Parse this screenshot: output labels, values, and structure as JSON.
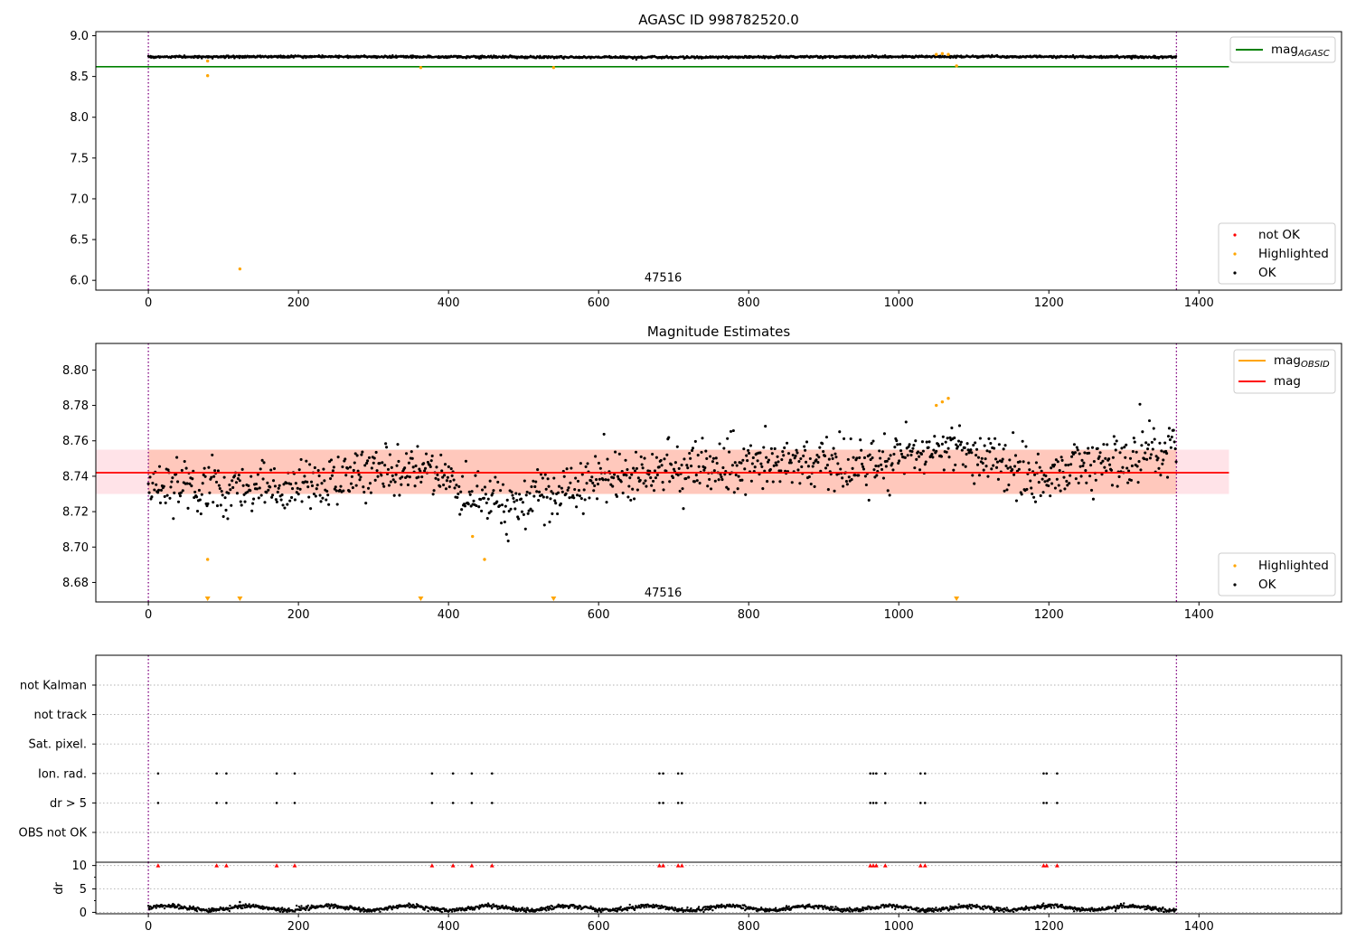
{
  "chart_data": [
    {
      "type": "scatter",
      "title": "AGASC ID 998782520.0",
      "xlim": [
        -70,
        1590
      ],
      "ylim": [
        5.88,
        9.05
      ],
      "x_ticks": [
        0,
        200,
        400,
        600,
        800,
        1000,
        1200,
        1400
      ],
      "y_ticks": [
        6.0,
        6.5,
        7.0,
        7.5,
        8.0,
        8.5,
        9.0
      ],
      "annotation": {
        "text": "47516",
        "x": 686,
        "y": 6.03
      },
      "obs_boundaries": [
        0,
        1370
      ],
      "mag_agasc": {
        "name": "mag",
        "subscript": "AGASC",
        "value": 8.62,
        "x_range": [
          -70,
          1440
        ],
        "color": "#008000"
      },
      "ok_series": {
        "name": "OK",
        "x_range": [
          0,
          1370
        ],
        "y_mean": 8.74,
        "y_spread": 0.012,
        "color": "#000000"
      },
      "highlighted": {
        "name": "Highlighted",
        "color": "#FFA500",
        "points": [
          [
            79,
            8.51
          ],
          [
            79,
            8.69
          ],
          [
            122,
            6.14
          ],
          [
            363,
            8.61
          ],
          [
            540,
            8.61
          ],
          [
            1050,
            8.77
          ],
          [
            1058,
            8.78
          ],
          [
            1066,
            8.77
          ],
          [
            1077,
            8.63
          ]
        ]
      },
      "not_ok": {
        "name": "not OK",
        "color": "#FF0000",
        "points": []
      },
      "legend_lines": "top-right",
      "legend_points": "bottom-right"
    },
    {
      "type": "scatter",
      "title": "Magnitude Estimates",
      "xlim": [
        -70,
        1590
      ],
      "ylim": [
        8.669,
        8.815
      ],
      "x_ticks": [
        0,
        200,
        400,
        600,
        800,
        1000,
        1200,
        1400
      ],
      "y_ticks": [
        8.68,
        8.7,
        8.72,
        8.74,
        8.76,
        8.78,
        8.8
      ],
      "y_tick_labels": [
        "8.68",
        "8.70",
        "8.72",
        "8.74",
        "8.76",
        "8.78",
        "8.80"
      ],
      "annotation": {
        "text": "47516",
        "x": 686,
        "y": 8.674
      },
      "obs_boundaries": [
        0,
        1370
      ],
      "mag": {
        "name": "mag",
        "value": 8.742,
        "band": [
          8.73,
          8.755
        ],
        "x_range": [
          -70,
          1440
        ],
        "color": "#FF0000",
        "band_color": "#FFC0CB"
      },
      "mag_obsid": {
        "name": "mag",
        "subscript": "OBSID",
        "value": 8.742,
        "band": [
          8.73,
          8.755
        ],
        "x_range": [
          0,
          1370
        ],
        "color": "#FFA500"
      },
      "ok_trend": [
        [
          0,
          8.735
        ],
        [
          100,
          8.734
        ],
        [
          200,
          8.735
        ],
        [
          300,
          8.742
        ],
        [
          380,
          8.744
        ],
        [
          430,
          8.73
        ],
        [
          480,
          8.724
        ],
        [
          540,
          8.73
        ],
        [
          600,
          8.738
        ],
        [
          700,
          8.743
        ],
        [
          800,
          8.746
        ],
        [
          900,
          8.748
        ],
        [
          960,
          8.745
        ],
        [
          1000,
          8.752
        ],
        [
          1060,
          8.756
        ],
        [
          1120,
          8.75
        ],
        [
          1180,
          8.738
        ],
        [
          1220,
          8.742
        ],
        [
          1280,
          8.75
        ],
        [
          1370,
          8.756
        ]
      ],
      "ok_series": {
        "name": "OK",
        "x_range": [
          0,
          1370
        ],
        "y_spread": 0.009,
        "color": "#000000"
      },
      "highlighted": {
        "name": "Highlighted",
        "color": "#FFA500",
        "points": [
          [
            79,
            8.693
          ],
          [
            432,
            8.706
          ],
          [
            448,
            8.693
          ],
          [
            1050,
            8.78
          ],
          [
            1058,
            8.782
          ],
          [
            1066,
            8.784
          ]
        ],
        "clipped_x": [
          79,
          122,
          363,
          540,
          1077
        ]
      },
      "legend_lines": "top-right",
      "legend_points": "bottom-right"
    },
    {
      "type": "scatter",
      "title": "",
      "xlim": [
        -70,
        1590
      ],
      "x_ticks": [
        0,
        200,
        400,
        600,
        800,
        1000,
        1200,
        1400
      ],
      "obs_boundaries": [
        0,
        1370
      ],
      "flags": [
        "not Kalman",
        "not track",
        "Sat. pixel.",
        "Ion. rad.",
        "dr > 5",
        "OBS not OK"
      ],
      "flag_points": {
        "Ion. rad.": [
          13,
          91,
          104,
          171,
          195,
          378,
          406,
          431,
          458,
          681,
          686,
          706,
          711,
          962,
          966,
          970,
          982,
          1029,
          1035,
          1193,
          1197,
          1211
        ],
        "dr > 5": [
          13,
          91,
          104,
          171,
          195,
          378,
          406,
          431,
          458,
          681,
          686,
          706,
          711,
          962,
          966,
          970,
          982,
          1029,
          1035,
          1193,
          1197,
          1211
        ]
      },
      "dr": {
        "ylabel": "dr",
        "ylim": [
          -0.3,
          10.7
        ],
        "y_ticks": [
          0,
          5,
          10
        ],
        "series_x_range": [
          0,
          1370
        ],
        "series_typical": 0.9,
        "outlier": [
          122,
          2.2
        ],
        "high_markers": {
          "value": 10,
          "color": "#FF0000",
          "x": [
            13,
            91,
            104,
            171,
            195,
            378,
            406,
            431,
            458,
            681,
            686,
            706,
            711,
            962,
            966,
            970,
            982,
            1029,
            1035,
            1193,
            1197,
            1211
          ]
        }
      }
    }
  ]
}
